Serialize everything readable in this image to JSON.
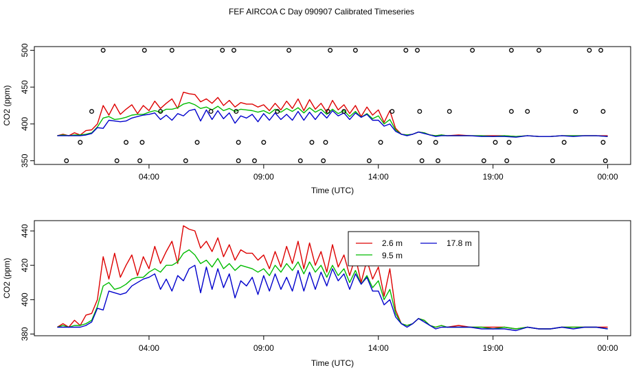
{
  "figure": {
    "title": "FEF AIRCOA C  Day 090907  Calibrated Timeseries"
  },
  "chart_data": [
    {
      "type": "line",
      "panel": "top",
      "xlabel": "Time (UTC)",
      "ylabel": "CO2 (ppm)",
      "xlim": [
        -1.0,
        25.0
      ],
      "ylim": [
        345,
        505
      ],
      "xticks": [
        {
          "value": 4,
          "label": "04:00"
        },
        {
          "value": 9,
          "label": "09:00"
        },
        {
          "value": 14,
          "label": "14:00"
        },
        {
          "value": 19,
          "label": "19:00"
        },
        {
          "value": 24,
          "label": "00:00"
        }
      ],
      "yticks": [
        {
          "value": 350,
          "label": "350"
        },
        {
          "value": 400,
          "label": "400"
        },
        {
          "value": 450,
          "label": "450"
        },
        {
          "value": 500,
          "label": "500"
        }
      ],
      "series_keys": [
        "2.6 m",
        "9.5 m",
        "17.8 m"
      ],
      "markers": {
        "name": "status points",
        "points": [
          [
            0.4,
            350
          ],
          [
            1.0,
            375
          ],
          [
            1.5,
            417
          ],
          [
            2.0,
            500
          ],
          [
            2.6,
            350
          ],
          [
            3.0,
            375
          ],
          [
            3.6,
            350
          ],
          [
            3.7,
            375
          ],
          [
            3.8,
            500
          ],
          [
            4.5,
            417
          ],
          [
            5.0,
            500
          ],
          [
            5.6,
            350
          ],
          [
            6.1,
            375
          ],
          [
            6.7,
            417
          ],
          [
            7.2,
            500
          ],
          [
            7.7,
            500
          ],
          [
            7.8,
            417
          ],
          [
            7.9,
            350
          ],
          [
            7.9,
            375
          ],
          [
            8.6,
            350
          ],
          [
            9.0,
            375
          ],
          [
            9.6,
            417
          ],
          [
            10.1,
            500
          ],
          [
            10.6,
            350
          ],
          [
            11.1,
            375
          ],
          [
            11.6,
            350
          ],
          [
            11.7,
            375
          ],
          [
            11.8,
            417
          ],
          [
            11.9,
            500
          ],
          [
            12.5,
            417
          ],
          [
            13.0,
            500
          ],
          [
            13.6,
            350
          ],
          [
            14.1,
            375
          ],
          [
            14.6,
            417
          ],
          [
            15.2,
            500
          ],
          [
            15.7,
            500
          ],
          [
            15.8,
            417
          ],
          [
            15.8,
            375
          ],
          [
            15.9,
            350
          ],
          [
            16.5,
            375
          ],
          [
            16.6,
            350
          ],
          [
            17.1,
            417
          ],
          [
            18.1,
            500
          ],
          [
            18.6,
            350
          ],
          [
            19.1,
            375
          ],
          [
            19.6,
            350
          ],
          [
            19.7,
            375
          ],
          [
            19.8,
            417
          ],
          [
            19.8,
            500
          ],
          [
            20.5,
            417
          ],
          [
            21.0,
            500
          ],
          [
            21.6,
            350
          ],
          [
            22.1,
            375
          ],
          [
            22.6,
            417
          ],
          [
            23.2,
            500
          ],
          [
            23.7,
            500
          ],
          [
            23.8,
            417
          ],
          [
            23.8,
            375
          ],
          [
            23.9,
            350
          ]
        ]
      }
    },
    {
      "type": "line",
      "panel": "bottom",
      "xlabel": "Time (UTC)",
      "ylabel": "CO2 (ppm)",
      "xlim": [
        -1.0,
        25.0
      ],
      "ylim": [
        379,
        446
      ],
      "xticks": [
        {
          "value": 4,
          "label": "04:00"
        },
        {
          "value": 9,
          "label": "09:00"
        },
        {
          "value": 14,
          "label": "14:00"
        },
        {
          "value": 19,
          "label": "19:00"
        },
        {
          "value": 24,
          "label": "00:00"
        }
      ],
      "yticks": [
        {
          "value": 380,
          "label": "380"
        },
        {
          "value": 400,
          "label": "400"
        },
        {
          "value": 420,
          "label": "420"
        },
        {
          "value": 440,
          "label": "440"
        }
      ],
      "legend": {
        "placement": "upper-right",
        "entries": [
          {
            "label": "2.6 m",
            "color": "#dd0000"
          },
          {
            "label": "17.8 m",
            "color": "#0000cc"
          },
          {
            "label": "9.5 m",
            "color": "#00bb00"
          }
        ]
      }
    }
  ],
  "series": [
    {
      "name": "2.6 m",
      "color": "#dd0000",
      "x": [
        0.0,
        0.25,
        0.5,
        0.75,
        1.0,
        1.25,
        1.5,
        1.75,
        2.0,
        2.25,
        2.5,
        2.75,
        3.0,
        3.25,
        3.5,
        3.75,
        4.0,
        4.25,
        4.5,
        4.75,
        5.0,
        5.25,
        5.5,
        5.75,
        6.0,
        6.25,
        6.5,
        6.75,
        7.0,
        7.25,
        7.5,
        7.75,
        8.0,
        8.25,
        8.5,
        8.75,
        9.0,
        9.25,
        9.5,
        9.75,
        10.0,
        10.25,
        10.5,
        10.75,
        11.0,
        11.25,
        11.5,
        11.75,
        12.0,
        12.25,
        12.5,
        12.75,
        13.0,
        13.25,
        13.5,
        13.75,
        14.0,
        14.25,
        14.5,
        14.75,
        15.0,
        15.25,
        15.5,
        15.75,
        16.0,
        16.25,
        16.5,
        16.75,
        17.0,
        17.5,
        18.0,
        18.5,
        19.0,
        19.5,
        20.0,
        20.5,
        21.0,
        21.5,
        22.0,
        22.5,
        23.0,
        23.5,
        24.0
      ],
      "values": [
        384,
        386,
        384,
        388,
        385,
        391,
        392,
        400,
        425,
        412,
        427,
        413,
        420,
        426,
        414,
        425,
        418,
        431,
        421,
        428,
        434,
        421,
        443,
        441,
        440,
        430,
        434,
        428,
        436,
        425,
        432,
        423,
        429,
        427,
        427,
        423,
        426,
        418,
        428,
        419,
        431,
        421,
        434,
        418,
        433,
        420,
        428,
        416,
        432,
        419,
        426,
        414,
        425,
        410,
        423,
        412,
        419,
        402,
        418,
        394,
        386,
        385,
        386,
        389,
        388,
        385,
        384,
        385,
        384,
        385,
        384,
        384,
        384,
        384,
        383,
        384,
        383,
        383,
        384,
        384,
        384,
        384,
        384
      ]
    },
    {
      "name": "9.5 m",
      "color": "#00bb00",
      "x": [
        0.0,
        0.25,
        0.5,
        0.75,
        1.0,
        1.25,
        1.5,
        1.75,
        2.0,
        2.25,
        2.5,
        2.75,
        3.0,
        3.25,
        3.5,
        3.75,
        4.0,
        4.25,
        4.5,
        4.75,
        5.0,
        5.25,
        5.5,
        5.75,
        6.0,
        6.25,
        6.5,
        6.75,
        7.0,
        7.25,
        7.5,
        7.75,
        8.0,
        8.25,
        8.5,
        8.75,
        9.0,
        9.25,
        9.5,
        9.75,
        10.0,
        10.25,
        10.5,
        10.75,
        11.0,
        11.25,
        11.5,
        11.75,
        12.0,
        12.25,
        12.5,
        12.75,
        13.0,
        13.25,
        13.5,
        13.75,
        14.0,
        14.25,
        14.5,
        14.75,
        15.0,
        15.25,
        15.5,
        15.75,
        16.0,
        16.25,
        16.5,
        16.75,
        17.0,
        17.5,
        18.0,
        18.5,
        19.0,
        19.5,
        20.0,
        20.5,
        21.0,
        21.5,
        22.0,
        22.5,
        23.0,
        23.5,
        24.0
      ],
      "values": [
        384,
        385,
        384,
        385,
        385,
        386,
        388,
        396,
        408,
        410,
        406,
        407,
        409,
        412,
        413,
        413,
        416,
        418,
        416,
        420,
        420,
        422,
        427,
        429,
        426,
        421,
        423,
        419,
        424,
        418,
        421,
        417,
        420,
        419,
        418,
        416,
        418,
        414,
        420,
        416,
        421,
        417,
        422,
        415,
        422,
        416,
        420,
        413,
        420,
        414,
        418,
        410,
        417,
        409,
        414,
        407,
        411,
        400,
        406,
        392,
        386,
        385,
        386,
        389,
        388,
        385,
        384,
        385,
        384,
        384,
        384,
        384,
        383,
        384,
        383,
        384,
        383,
        383,
        384,
        384,
        384,
        384,
        383
      ]
    },
    {
      "name": "17.8 m",
      "color": "#0000cc",
      "x": [
        0.0,
        0.25,
        0.5,
        0.75,
        1.0,
        1.25,
        1.5,
        1.75,
        2.0,
        2.25,
        2.5,
        2.75,
        3.0,
        3.25,
        3.5,
        3.75,
        4.0,
        4.25,
        4.5,
        4.75,
        5.0,
        5.25,
        5.5,
        5.75,
        6.0,
        6.25,
        6.5,
        6.75,
        7.0,
        7.25,
        7.5,
        7.75,
        8.0,
        8.25,
        8.5,
        8.75,
        9.0,
        9.25,
        9.5,
        9.75,
        10.0,
        10.25,
        10.5,
        10.75,
        11.0,
        11.25,
        11.5,
        11.75,
        12.0,
        12.25,
        12.5,
        12.75,
        13.0,
        13.25,
        13.5,
        13.75,
        14.0,
        14.25,
        14.5,
        14.75,
        15.0,
        15.25,
        15.5,
        15.75,
        16.0,
        16.25,
        16.5,
        16.75,
        17.0,
        17.5,
        18.0,
        18.5,
        19.0,
        19.5,
        20.0,
        20.5,
        21.0,
        21.5,
        22.0,
        22.5,
        23.0,
        23.5,
        24.0
      ],
      "values": [
        384,
        384,
        384,
        384,
        384,
        385,
        387,
        395,
        394,
        405,
        404,
        403,
        404,
        408,
        410,
        412,
        413,
        415,
        406,
        412,
        405,
        414,
        411,
        418,
        420,
        404,
        419,
        406,
        418,
        407,
        415,
        401,
        411,
        408,
        413,
        403,
        414,
        405,
        415,
        406,
        413,
        405,
        417,
        405,
        416,
        406,
        416,
        408,
        418,
        411,
        415,
        406,
        415,
        409,
        413,
        405,
        405,
        397,
        400,
        390,
        386,
        384,
        386,
        389,
        387,
        385,
        383,
        384,
        384,
        384,
        384,
        383,
        383,
        383,
        382,
        384,
        383,
        383,
        384,
        383,
        384,
        384,
        383
      ]
    }
  ]
}
